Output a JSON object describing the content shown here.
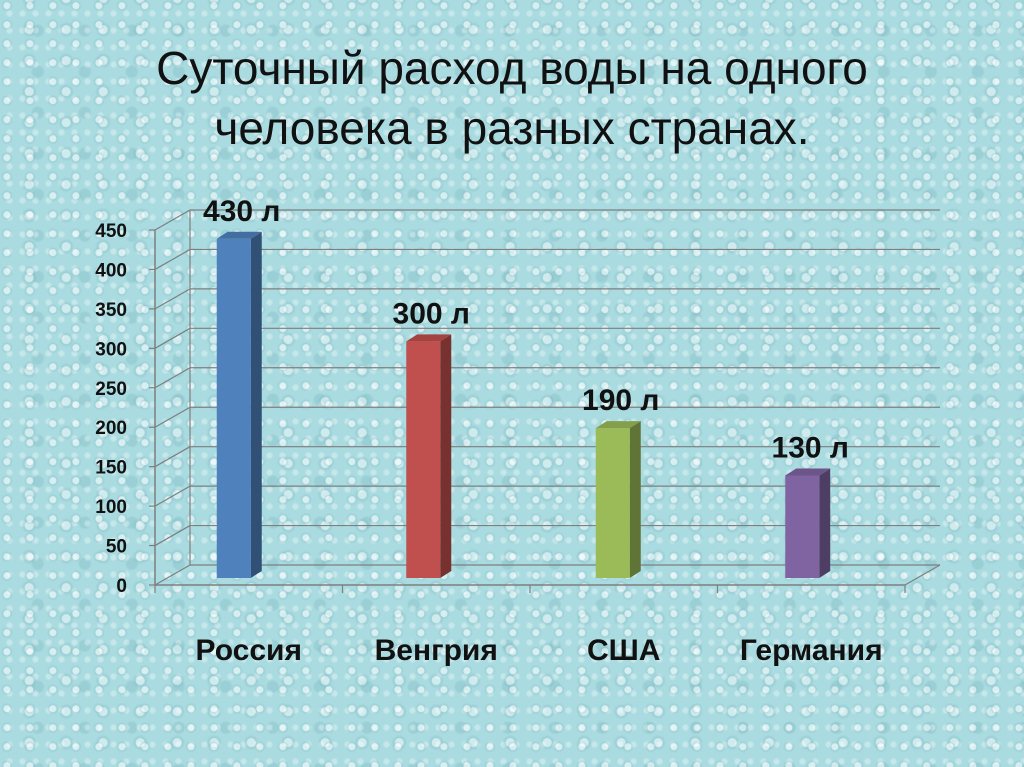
{
  "slide": {
    "title": "Суточный расход  воды на одного\nчеловека в разных странах."
  },
  "chart_data": {
    "type": "bar",
    "categories": [
      "Россия",
      "Венгрия",
      "США",
      "Германия"
    ],
    "values": [
      430,
      300,
      190,
      130
    ],
    "data_labels": [
      "430 л",
      "300 л",
      "190 л",
      "130 л"
    ],
    "colors": [
      "#4f81bd",
      "#c0504d",
      "#9bbb59",
      "#8064a2"
    ],
    "ylim": [
      0,
      450
    ],
    "yticks": [
      0,
      50,
      100,
      150,
      200,
      250,
      300,
      350,
      400,
      450
    ],
    "grid": true,
    "legend": "none"
  }
}
